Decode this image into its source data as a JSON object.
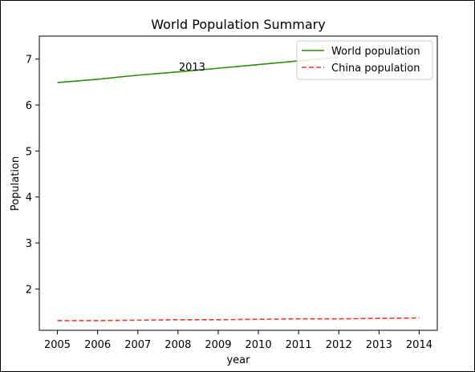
{
  "chart_data": {
    "type": "line",
    "title": "World Population Summary",
    "xlabel": "year",
    "ylabel": "Population",
    "x": [
      2005,
      2006,
      2007,
      2008,
      2009,
      2010,
      2011,
      2012,
      2013,
      2014
    ],
    "xlim": [
      2004.55,
      2014.45
    ],
    "ylim": [
      1.1,
      7.5
    ],
    "yticks": [
      2,
      3,
      4,
      5,
      6,
      7
    ],
    "series": [
      {
        "name": "World population",
        "color": "#2e8b0f",
        "style": "solid",
        "values": [
          6.49,
          6.56,
          6.65,
          6.72,
          6.8,
          6.88,
          6.96,
          7.04,
          null,
          null
        ]
      },
      {
        "name": "China population",
        "color": "#ee3a2c",
        "style": "dashed",
        "values": [
          1.31,
          1.31,
          1.32,
          1.33,
          1.33,
          1.34,
          1.35,
          1.35,
          1.36,
          1.37
        ]
      }
    ],
    "annotations": [
      {
        "text": "2013",
        "x": 2008.35,
        "y": 6.75
      }
    ],
    "legend": "top-right",
    "grid": false
  }
}
